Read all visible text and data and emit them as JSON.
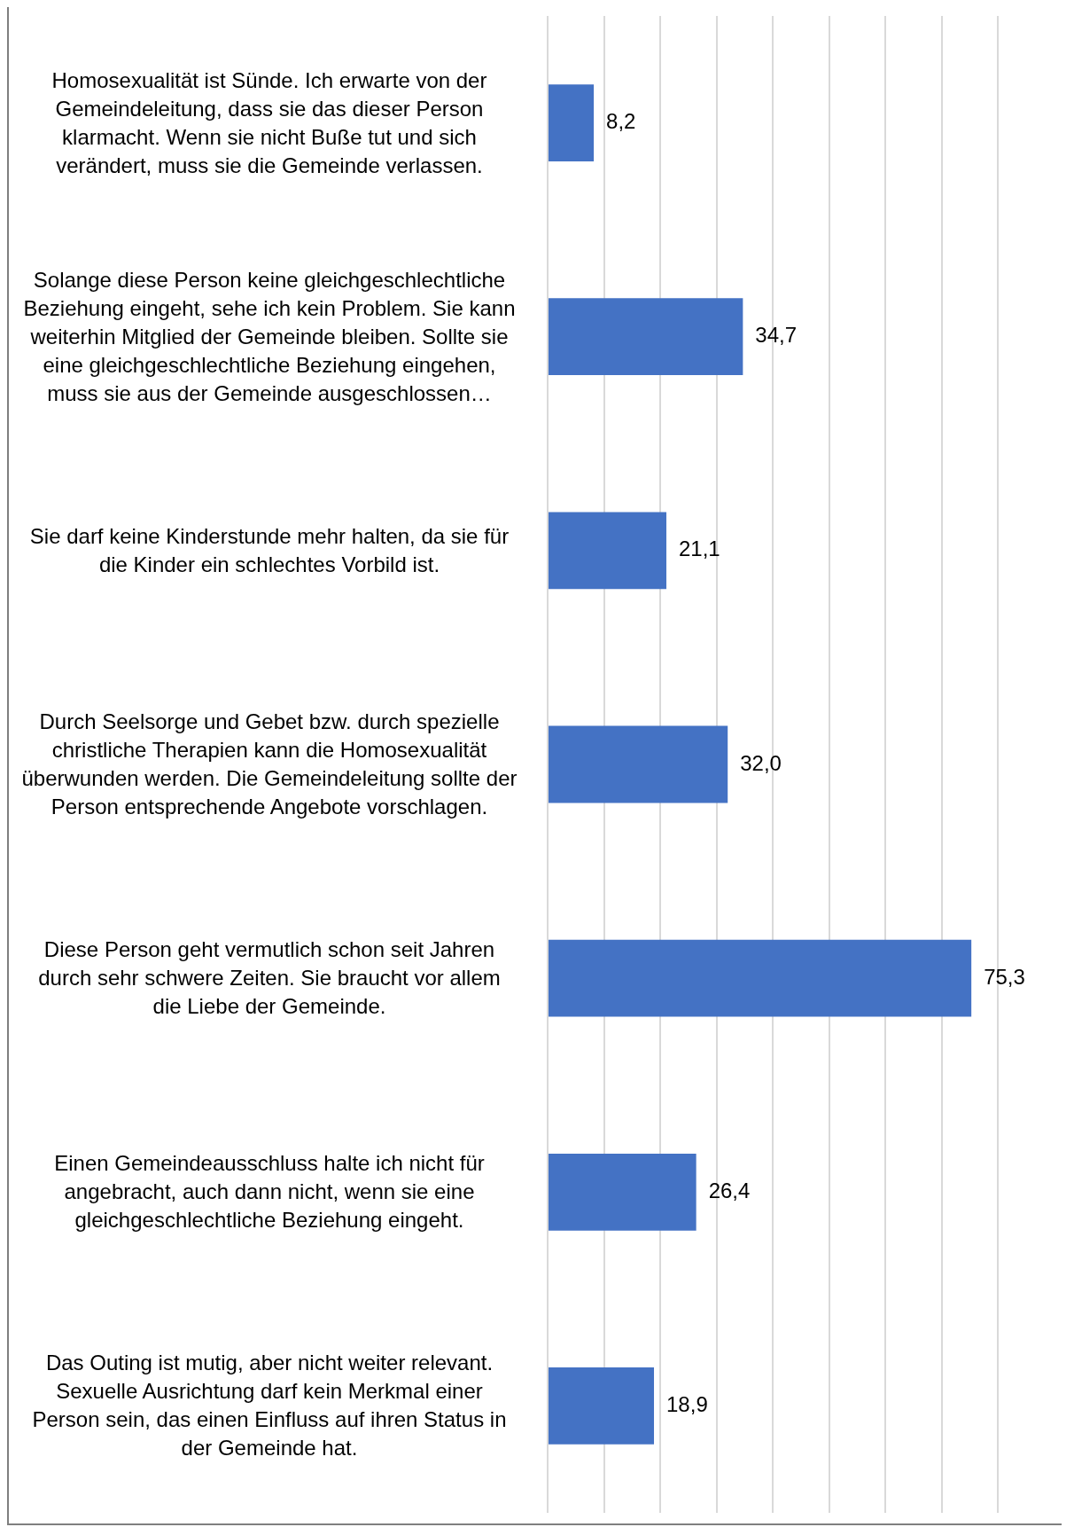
{
  "chart_data": {
    "type": "bar",
    "orientation": "horizontal",
    "categories": [
      "Homosexualität ist Sünde. Ich erwarte von der Gemeindeleitung, dass sie das dieser Person klarmacht. Wenn sie nicht Buße tut und sich verändert, muss sie die Gemeinde verlassen.",
      "Solange diese Person keine gleichgeschlechtliche Beziehung eingeht, sehe ich kein Problem. Sie kann weiterhin Mitglied der Gemeinde bleiben. Sollte sie eine gleichgeschlechtliche Beziehung eingehen, muss sie aus der Gemeinde ausgeschlossen…",
      "Sie darf keine Kinderstunde mehr halten, da sie für die Kinder ein schlechtes Vorbild ist.",
      "Durch Seelsorge und Gebet bzw. durch spezielle christliche Therapien kann die Homosexualität überwunden werden. Die Gemeindeleitung sollte der Person entsprechende Angebote vorschlagen.",
      "Diese Person geht vermutlich schon seit Jahren durch sehr schwere Zeiten. Sie braucht vor allem die Liebe der Gemeinde.",
      "Einen Gemeindeausschluss halte ich nicht für angebracht, auch dann nicht, wenn sie eine gleichgeschlechtliche Beziehung eingeht.",
      "Das Outing ist mutig, aber nicht weiter relevant. Sexuelle Ausrichtung darf kein Merkmal einer Person sein, das einen Einfluss auf ihren Status in der Gemeinde hat."
    ],
    "values": [
      8.2,
      34.7,
      21.1,
      32.0,
      75.3,
      26.4,
      18.9
    ],
    "value_labels": [
      "8,2",
      "34,7",
      "21,1",
      "32,0",
      "75,3",
      "26,4",
      "18,9"
    ],
    "color": "#4472c4",
    "xlim": [
      0,
      80
    ],
    "xticks": [
      {
        "value": 0,
        "label": null
      },
      {
        "value": 10,
        "label": null
      },
      {
        "value": 20,
        "label": null
      },
      {
        "value": 30,
        "label": null
      },
      {
        "value": 40,
        "label": null
      },
      {
        "value": 50,
        "label": null
      },
      {
        "value": 60,
        "label": null
      },
      {
        "value": 70,
        "label": null
      },
      {
        "value": 80,
        "label": null
      }
    ],
    "tick_labels": "y",
    "grid": "x",
    "legend": false
  }
}
